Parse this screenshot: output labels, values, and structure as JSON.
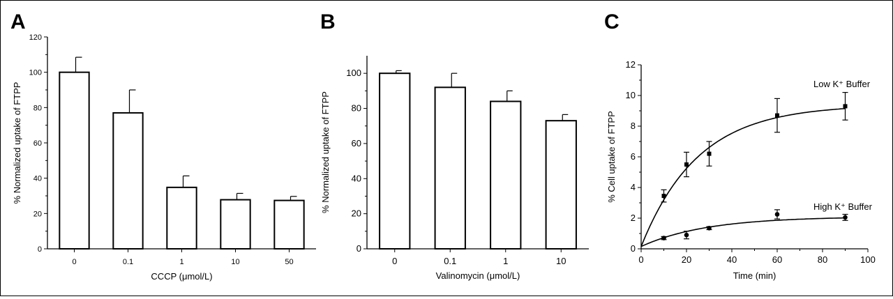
{
  "figure": {
    "panel_letters": [
      "A",
      "B",
      "C"
    ]
  },
  "chart_data": [
    {
      "panel": "A",
      "type": "bar",
      "categories": [
        "0",
        "0.1",
        "1",
        "10",
        "50"
      ],
      "values": [
        100,
        77,
        34.8,
        27.8,
        27.4
      ],
      "errors": [
        8.5,
        13,
        6.5,
        3.6,
        2.3
      ],
      "xlabel": "CCCP (μmol/L)",
      "ylabel": "% Normalized uptake of FTPP",
      "ylim": [
        0,
        120
      ],
      "yticks": [
        "0",
        "20",
        "40",
        "60",
        "80",
        "100",
        "120"
      ]
    },
    {
      "panel": "B",
      "type": "bar",
      "categories": [
        "0",
        "0.1",
        "1",
        "10"
      ],
      "values": [
        100,
        92,
        84,
        73
      ],
      "errors": [
        1.5,
        8,
        6,
        3.5
      ],
      "xlabel": "Valinomycin (μmol/L)",
      "ylabel": "% Normalized uptake of FTPP",
      "ylim": [
        0,
        110
      ],
      "yticks": [
        "0",
        "20",
        "40",
        "60",
        "80",
        "100"
      ]
    },
    {
      "panel": "C",
      "type": "scatter",
      "xlabel": "Time (min)",
      "ylabel": "% Cell uptake of FTPP",
      "xlim": [
        0,
        100
      ],
      "ylim": [
        0,
        12
      ],
      "xticks": [
        "0",
        "20",
        "40",
        "60",
        "80",
        "100"
      ],
      "yticks": [
        "0",
        "2",
        "4",
        "6",
        "8",
        "10",
        "12"
      ],
      "series": [
        {
          "name": "Low K⁺ Buffer",
          "marker": "square",
          "x": [
            10,
            20,
            30,
            60,
            90
          ],
          "y": [
            3.45,
            5.5,
            6.2,
            8.7,
            9.3
          ],
          "err": [
            0.4,
            0.8,
            0.8,
            1.1,
            0.9
          ],
          "fit": {
            "A": 9.4,
            "k": 0.04,
            "y0": 0.15
          }
        },
        {
          "name": "High K⁺ Buffer",
          "marker": "circle",
          "x": [
            10,
            20,
            30,
            60,
            90
          ],
          "y": [
            0.7,
            0.9,
            1.35,
            2.25,
            2.05
          ],
          "err": [
            0.1,
            0.25,
            0.1,
            0.3,
            0.2
          ],
          "fit": {
            "A": 2.1,
            "k": 0.035,
            "y0": 0.15
          }
        }
      ]
    }
  ]
}
